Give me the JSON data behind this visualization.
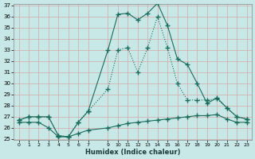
{
  "xlabel": "Humidex (Indice chaleur)",
  "background_color": "#c8e8e8",
  "line_color": "#1a6b5a",
  "ylim": [
    25,
    37
  ],
  "xlim": [
    -0.5,
    23.5
  ],
  "yticks": [
    25,
    26,
    27,
    28,
    29,
    30,
    31,
    32,
    33,
    34,
    35,
    36,
    37
  ],
  "xticks": [
    0,
    1,
    2,
    3,
    4,
    5,
    6,
    7,
    9,
    10,
    11,
    12,
    13,
    14,
    15,
    16,
    17,
    18,
    19,
    20,
    21,
    22,
    23
  ],
  "series_dotted_x": [
    0,
    1,
    2,
    3,
    4,
    5,
    6,
    7,
    9,
    10,
    11,
    12,
    13,
    14,
    15,
    16,
    17,
    18,
    19,
    20,
    21,
    22,
    23
  ],
  "series_dotted_y": [
    26.7,
    27.0,
    27.0,
    27.0,
    25.3,
    25.2,
    26.5,
    27.5,
    29.5,
    33.0,
    33.2,
    31.0,
    33.2,
    36.0,
    33.2,
    30.0,
    28.5,
    28.5,
    28.5,
    28.6,
    27.8,
    27.0,
    26.8
  ],
  "series_solid_x": [
    0,
    1,
    2,
    3,
    4,
    5,
    6,
    7,
    9,
    10,
    11,
    12,
    13,
    14,
    15,
    16,
    17,
    18,
    19,
    20,
    21,
    22,
    23
  ],
  "series_solid_y": [
    26.7,
    27.0,
    27.0,
    27.0,
    25.3,
    25.2,
    26.5,
    27.5,
    33.0,
    36.2,
    36.3,
    35.7,
    36.3,
    37.2,
    35.2,
    32.2,
    31.7,
    30.0,
    28.2,
    28.7,
    27.8,
    27.0,
    26.8
  ],
  "series_flat_x": [
    0,
    1,
    2,
    3,
    4,
    5,
    6,
    7,
    9,
    10,
    11,
    12,
    13,
    14,
    15,
    16,
    17,
    18,
    19,
    20,
    21,
    22,
    23
  ],
  "series_flat_y": [
    26.5,
    26.5,
    26.5,
    26.0,
    25.2,
    25.2,
    25.5,
    25.8,
    26.0,
    26.2,
    26.4,
    26.5,
    26.6,
    26.7,
    26.8,
    26.9,
    27.0,
    27.1,
    27.1,
    27.2,
    26.8,
    26.5,
    26.5
  ]
}
